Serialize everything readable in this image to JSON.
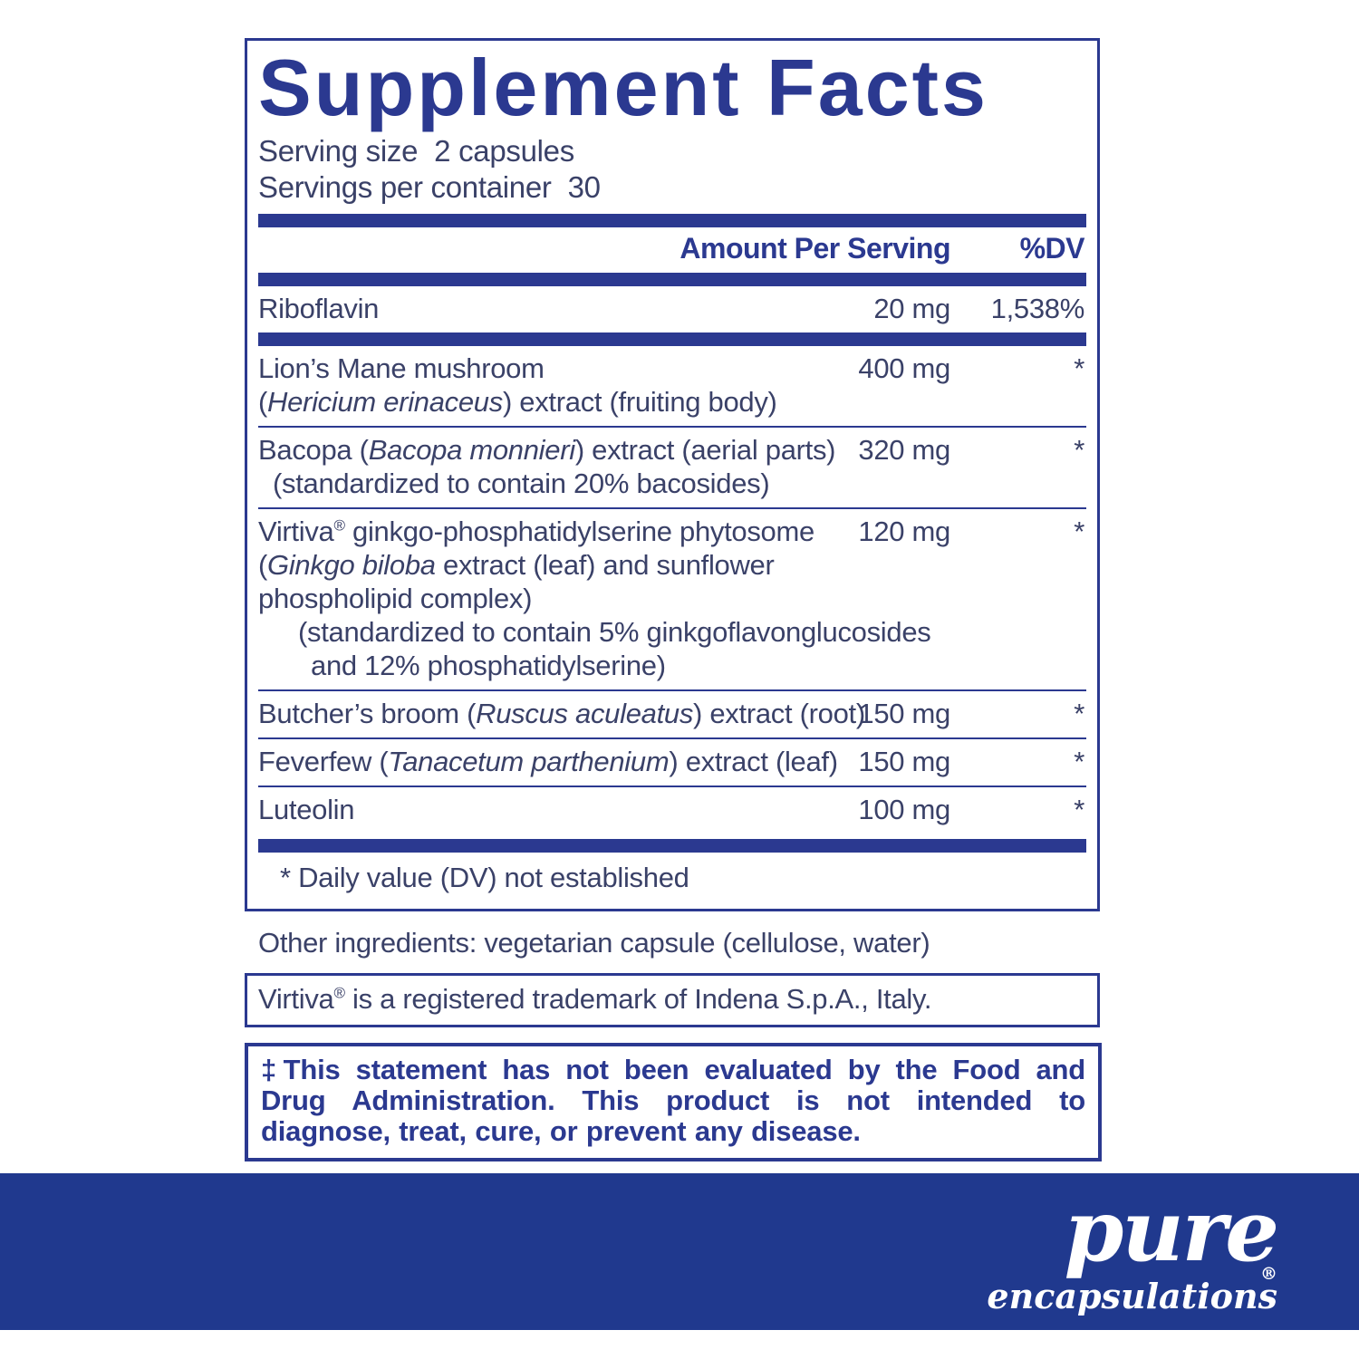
{
  "label": {
    "title": "Supplement Facts",
    "serving_size_label": "Serving size",
    "serving_size_value": "2 capsules",
    "servings_label": "Servings per container",
    "servings_value": "30",
    "col_amount": "Amount Per Serving",
    "col_dv": "%DV",
    "rows": [
      {
        "name_lines": [
          {
            "indent": 0,
            "segments": [
              {
                "t": "Riboflavin"
              }
            ]
          }
        ],
        "amount": "20 mg",
        "dv": "1,538%",
        "sep_after": "thick"
      },
      {
        "name_lines": [
          {
            "indent": 0,
            "segments": [
              {
                "t": "Lion’s Mane mushroom"
              }
            ]
          },
          {
            "indent": 0,
            "segments": [
              {
                "t": "("
              },
              {
                "t": "Hericium erinaceus",
                "i": true
              },
              {
                "t": ") extract (fruiting body)"
              }
            ]
          }
        ],
        "amount": "400 mg",
        "dv": "*",
        "sep_after": "thin"
      },
      {
        "name_lines": [
          {
            "indent": 0,
            "segments": [
              {
                "t": "Bacopa ("
              },
              {
                "t": "Bacopa monnieri",
                "i": true
              },
              {
                "t": ") extract (aerial parts)"
              }
            ]
          },
          {
            "indent": 1,
            "segments": [
              {
                "t": "(standardized to contain 20% bacosides)"
              }
            ]
          }
        ],
        "amount": "320 mg",
        "dv": "*",
        "sep_after": "thin"
      },
      {
        "name_lines": [
          {
            "indent": 0,
            "segments": [
              {
                "t": "Virtiva"
              },
              {
                "t": "®",
                "sup": true
              },
              {
                "t": " ginkgo-phosphatidylserine phytosome"
              }
            ]
          },
          {
            "indent": 0,
            "segments": [
              {
                "t": "("
              },
              {
                "t": "Ginkgo biloba",
                "i": true
              },
              {
                "t": " extract (leaf) and sunflower"
              }
            ]
          },
          {
            "indent": 0,
            "segments": [
              {
                "t": "phospholipid complex)"
              }
            ]
          },
          {
            "indent": 2,
            "segments": [
              {
                "t": "(standardized to contain 5% ginkgoflavonglucosides"
              }
            ]
          },
          {
            "indent": 3,
            "segments": [
              {
                "t": "and 12% phosphatidylserine)"
              }
            ]
          }
        ],
        "amount": "120 mg",
        "dv": "*",
        "sep_after": "thin"
      },
      {
        "name_lines": [
          {
            "indent": 0,
            "segments": [
              {
                "t": "Butcher’s broom ("
              },
              {
                "t": "Ruscus aculeatus",
                "i": true
              },
              {
                "t": ") extract (root)"
              }
            ]
          }
        ],
        "amount": "150 mg",
        "dv": "*",
        "sep_after": "thin"
      },
      {
        "name_lines": [
          {
            "indent": 0,
            "segments": [
              {
                "t": "Feverfew ("
              },
              {
                "t": "Tanacetum parthenium",
                "i": true
              },
              {
                "t": ") extract (leaf)"
              }
            ]
          }
        ],
        "amount": "150 mg",
        "dv": "*",
        "sep_after": "thin"
      },
      {
        "name_lines": [
          {
            "indent": 0,
            "segments": [
              {
                "t": "Luteolin"
              }
            ]
          }
        ],
        "amount": "100 mg",
        "dv": "*",
        "sep_after": null
      }
    ],
    "footnote": "* Daily value (DV) not established",
    "other_ingredients": "Other ingredients: vegetarian capsule (cellulose, water)",
    "trademark_segments": [
      {
        "t": "Virtiva"
      },
      {
        "t": "®",
        "sup": true
      },
      {
        "t": " is a registered trademark of Indena S.p.A., Italy."
      }
    ],
    "disclaimer": "‡This statement has not been evaluated by the Food and Drug Administration. This product is not intended to diagnose, treat, cure, or prevent any disease."
  },
  "footer": {
    "brand": "pure",
    "brand_sub": "encapsulations",
    "reg_mark": "®"
  },
  "colors": {
    "ink": "#2b3990",
    "body_text": "#3a4168",
    "footer_blue": "#20398e"
  }
}
